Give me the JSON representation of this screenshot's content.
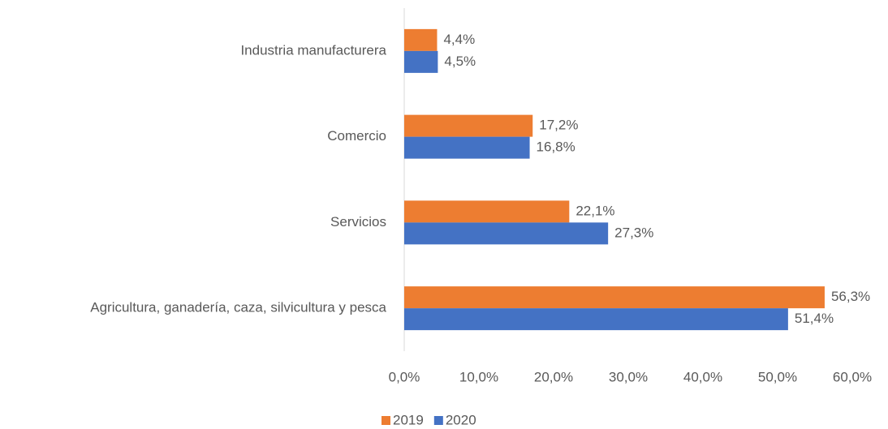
{
  "chart_data": {
    "type": "bar",
    "orientation": "horizontal",
    "categories": [
      "Industria manufacturera",
      "Comercio",
      "Servicios",
      "Agricultura, ganadería, caza, silvicultura y pesca"
    ],
    "series": [
      {
        "name": "2019",
        "color": "#ed7d31",
        "values": [
          4.4,
          17.2,
          22.1,
          56.3
        ],
        "value_labels": [
          "4,4%",
          "17,2%",
          "22,1%",
          "56,3%"
        ]
      },
      {
        "name": "2020",
        "color": "#4472c4",
        "values": [
          4.5,
          16.8,
          27.3,
          51.4
        ],
        "value_labels": [
          "4,5%",
          "16,8%",
          "27,3%",
          "51,4%"
        ]
      }
    ],
    "xlim": [
      0,
      60
    ],
    "xticks": [
      {
        "value": 0,
        "label": "0,0%"
      },
      {
        "value": 10,
        "label": "10,0%"
      },
      {
        "value": 20,
        "label": "20,0%"
      },
      {
        "value": 30,
        "label": "30,0%"
      },
      {
        "value": 40,
        "label": "40,0%"
      },
      {
        "value": 50,
        "label": "50,0%"
      },
      {
        "value": 60,
        "label": "60,0%"
      }
    ],
    "legend": "bottom"
  }
}
